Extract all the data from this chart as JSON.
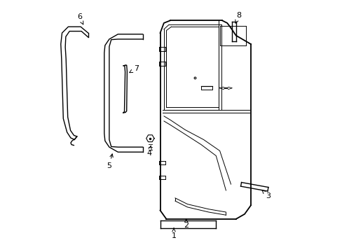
{
  "bg_color": "#ffffff",
  "line_color": "#000000",
  "figsize": [
    4.89,
    3.6
  ],
  "dpi": 100,
  "lw_thin": 0.7,
  "lw_main": 1.0,
  "lw_thick": 1.3
}
